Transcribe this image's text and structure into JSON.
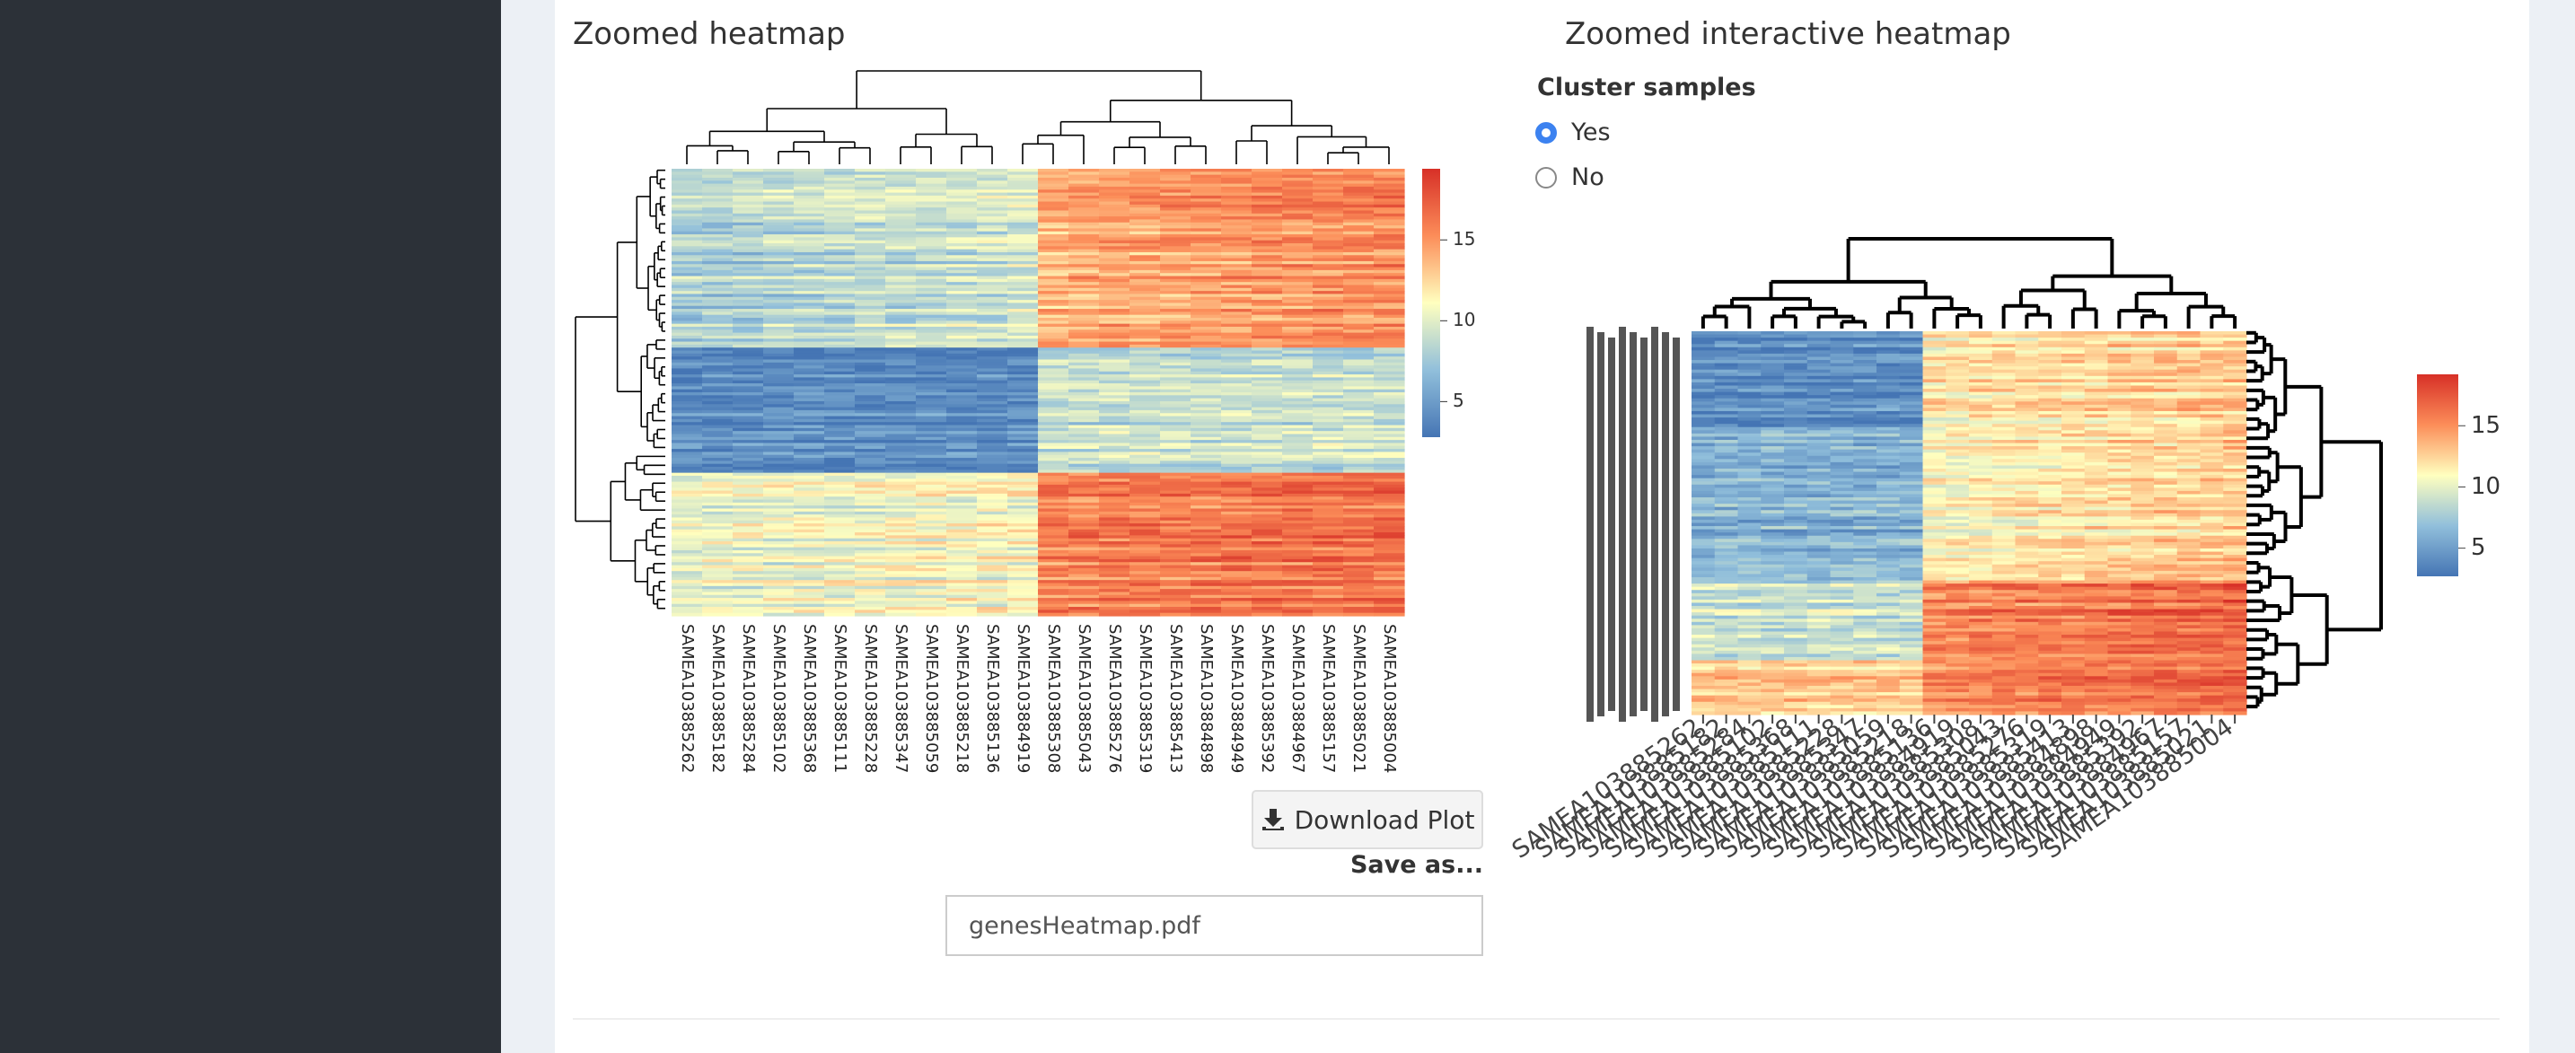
{
  "left_panel": {
    "title": "Zoomed heatmap",
    "heatmap": {
      "samples": [
        "SAMEA103885262",
        "SAMEA103885182",
        "SAMEA103885284",
        "SAMEA103885102",
        "SAMEA103885368",
        "SAMEA103885111",
        "SAMEA103885228",
        "SAMEA103885347",
        "SAMEA103885059",
        "SAMEA103885218",
        "SAMEA103885136",
        "SAMEA103884919",
        "SAMEA103885308",
        "SAMEA103885043",
        "SAMEA103885276",
        "SAMEA103885319",
        "SAMEA103885413",
        "SAMEA103884898",
        "SAMEA103884949",
        "SAMEA103885392",
        "SAMEA103884967",
        "SAMEA103885157",
        "SAMEA103885021",
        "SAMEA103885004"
      ],
      "colorbar": {
        "lim": [
          2.8,
          19.4
        ],
        "ticks": [
          5,
          10,
          15
        ]
      }
    },
    "download_button": "Download Plot",
    "save_as": {
      "label": "Save as...",
      "value": "genesHeatmap.pdf"
    }
  },
  "right_panel": {
    "title": "Zoomed interactive heatmap",
    "cluster_samples": {
      "label": "Cluster samples",
      "options": [
        "Yes",
        "No"
      ],
      "selected": "Yes"
    },
    "heatmap": {
      "samples": [
        "SAMEA103885262",
        "SAMEA103885182",
        "SAMEA103885284",
        "SAMEA103885102",
        "SAMEA103885368",
        "SAMEA103885111",
        "SAMEA103885228",
        "SAMEA103885347",
        "SAMEA103885059",
        "SAMEA103885218",
        "SAMEA103885136",
        "SAMEA103884919",
        "SAMEA103885308",
        "SAMEA103885043",
        "SAMEA103885276",
        "SAMEA103885319",
        "SAMEA103885413",
        "SAMEA103884898",
        "SAMEA103884949",
        "SAMEA103885392",
        "SAMEA103884967",
        "SAMEA103885157",
        "SAMEA103885021",
        "SAMEA103885004"
      ],
      "colorbar": {
        "lim": [
          2.7,
          19.2
        ],
        "ticks": [
          5,
          10,
          15
        ]
      }
    }
  }
}
